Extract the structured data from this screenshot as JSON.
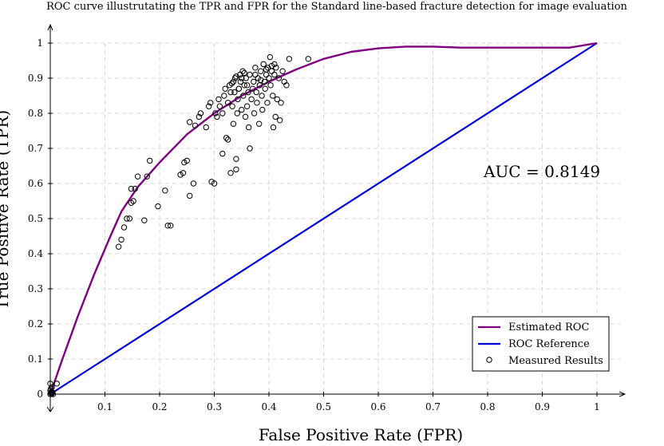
{
  "chart_data": {
    "type": "line",
    "title": "ROC curve illustrutating the TPR and FPR for the Standard line-based fracture detection for image evaluation",
    "xlabel": "False Positive Rate (FPR)",
    "ylabel": "True Positive Rate (TPR)",
    "xlim": [
      0,
      1
    ],
    "ylim": [
      0,
      1
    ],
    "x_ticks": [
      "0.1",
      "0.2",
      "0.3",
      "0.4",
      "0.5",
      "0.6",
      "0.7",
      "0.8",
      "0.9",
      "1"
    ],
    "y_ticks": [
      "0",
      "0.1",
      "0.2",
      "0.3",
      "0.4",
      "0.5",
      "0.6",
      "0.7",
      "0.8",
      "0.9",
      "1"
    ],
    "grid": true,
    "legend_position": "bottom-right",
    "annotation": "AUC = 0.8149",
    "series": [
      {
        "name": "Estimated ROC",
        "type": "line",
        "color": "#800080",
        "x": [
          0,
          0.02,
          0.05,
          0.08,
          0.11,
          0.13,
          0.16,
          0.2,
          0.25,
          0.3,
          0.35,
          0.4,
          0.45,
          0.5,
          0.55,
          0.6,
          0.65,
          0.7,
          0.75,
          0.8,
          0.9,
          0.95,
          1.0
        ],
        "y": [
          0,
          0.09,
          0.22,
          0.34,
          0.45,
          0.52,
          0.59,
          0.66,
          0.74,
          0.8,
          0.85,
          0.89,
          0.925,
          0.955,
          0.975,
          0.985,
          0.99,
          0.99,
          0.987,
          0.987,
          0.987,
          0.987,
          1.0
        ]
      },
      {
        "name": "ROC Reference",
        "type": "line",
        "color": "#0000e0",
        "x": [
          0,
          1
        ],
        "y": [
          0,
          1
        ]
      },
      {
        "name": "Measured Results",
        "type": "scatter",
        "color": "#000000",
        "points": [
          [
            0.0,
            0.0
          ],
          [
            0.001,
            0.003
          ],
          [
            0.002,
            0.006
          ],
          [
            0.003,
            0.002
          ],
          [
            0.0,
            0.01
          ],
          [
            0.004,
            0.005
          ],
          [
            0.001,
            0.015
          ],
          [
            0.005,
            0.0
          ],
          [
            0.003,
            0.02
          ],
          [
            0.012,
            0.03
          ],
          [
            0.0,
            0.03
          ],
          [
            0.125,
            0.42
          ],
          [
            0.13,
            0.44
          ],
          [
            0.135,
            0.475
          ],
          [
            0.14,
            0.5
          ],
          [
            0.145,
            0.5
          ],
          [
            0.148,
            0.545
          ],
          [
            0.152,
            0.55
          ],
          [
            0.148,
            0.585
          ],
          [
            0.155,
            0.585
          ],
          [
            0.16,
            0.62
          ],
          [
            0.172,
            0.495
          ],
          [
            0.177,
            0.62
          ],
          [
            0.182,
            0.665
          ],
          [
            0.197,
            0.535
          ],
          [
            0.21,
            0.58
          ],
          [
            0.215,
            0.48
          ],
          [
            0.22,
            0.48
          ],
          [
            0.238,
            0.625
          ],
          [
            0.243,
            0.63
          ],
          [
            0.245,
            0.66
          ],
          [
            0.25,
            0.665
          ],
          [
            0.255,
            0.565
          ],
          [
            0.262,
            0.6
          ],
          [
            0.255,
            0.775
          ],
          [
            0.265,
            0.765
          ],
          [
            0.272,
            0.79
          ],
          [
            0.275,
            0.8
          ],
          [
            0.285,
            0.76
          ],
          [
            0.29,
            0.82
          ],
          [
            0.293,
            0.83
          ],
          [
            0.295,
            0.605
          ],
          [
            0.3,
            0.6
          ],
          [
            0.302,
            0.8
          ],
          [
            0.305,
            0.79
          ],
          [
            0.308,
            0.84
          ],
          [
            0.31,
            0.82
          ],
          [
            0.315,
            0.685
          ],
          [
            0.315,
            0.8
          ],
          [
            0.318,
            0.85
          ],
          [
            0.32,
            0.87
          ],
          [
            0.322,
            0.73
          ],
          [
            0.325,
            0.725
          ],
          [
            0.325,
            0.83
          ],
          [
            0.328,
            0.88
          ],
          [
            0.33,
            0.63
          ],
          [
            0.332,
            0.885
          ],
          [
            0.333,
            0.82
          ],
          [
            0.335,
            0.77
          ],
          [
            0.337,
            0.86
          ],
          [
            0.338,
            0.9
          ],
          [
            0.34,
            0.67
          ],
          [
            0.34,
            0.64
          ],
          [
            0.342,
            0.8
          ],
          [
            0.343,
            0.84
          ],
          [
            0.345,
            0.87
          ],
          [
            0.347,
            0.91
          ],
          [
            0.348,
            0.89
          ],
          [
            0.35,
            0.81
          ],
          [
            0.352,
            0.92
          ],
          [
            0.353,
            0.85
          ],
          [
            0.355,
            0.88
          ],
          [
            0.357,
            0.79
          ],
          [
            0.358,
            0.9
          ],
          [
            0.36,
            0.82
          ],
          [
            0.362,
            0.86
          ],
          [
            0.363,
            0.76
          ],
          [
            0.365,
            0.7
          ],
          [
            0.365,
            0.91
          ],
          [
            0.368,
            0.84
          ],
          [
            0.37,
            0.87
          ],
          [
            0.372,
            0.89
          ],
          [
            0.373,
            0.8
          ],
          [
            0.375,
            0.93
          ],
          [
            0.377,
            0.86
          ],
          [
            0.378,
            0.83
          ],
          [
            0.38,
            0.9
          ],
          [
            0.382,
            0.77
          ],
          [
            0.383,
            0.88
          ],
          [
            0.385,
            0.92
          ],
          [
            0.387,
            0.85
          ],
          [
            0.388,
            0.81
          ],
          [
            0.39,
            0.94
          ],
          [
            0.392,
            0.89
          ],
          [
            0.393,
            0.87
          ],
          [
            0.395,
            0.91
          ],
          [
            0.397,
            0.83
          ],
          [
            0.398,
            0.93
          ],
          [
            0.4,
            0.9
          ],
          [
            0.402,
            0.96
          ],
          [
            0.403,
            0.88
          ],
          [
            0.405,
            0.92
          ],
          [
            0.407,
            0.85
          ],
          [
            0.408,
            0.76
          ],
          [
            0.41,
            0.91
          ],
          [
            0.412,
            0.79
          ],
          [
            0.413,
            0.93
          ],
          [
            0.415,
            0.84
          ],
          [
            0.418,
            0.9
          ],
          [
            0.42,
            0.78
          ],
          [
            0.422,
            0.83
          ],
          [
            0.425,
            0.92
          ],
          [
            0.428,
            0.89
          ],
          [
            0.432,
            0.88
          ],
          [
            0.437,
            0.955
          ],
          [
            0.472,
            0.955
          ],
          [
            0.33,
            0.86
          ],
          [
            0.335,
            0.89
          ],
          [
            0.34,
            0.905
          ],
          [
            0.345,
            0.87
          ],
          [
            0.35,
            0.9
          ],
          [
            0.355,
            0.915
          ],
          [
            0.36,
            0.88
          ],
          [
            0.375,
            0.91
          ],
          [
            0.385,
            0.895
          ],
          [
            0.395,
            0.925
          ],
          [
            0.405,
            0.935
          ],
          [
            0.41,
            0.94
          ]
        ]
      }
    ]
  }
}
